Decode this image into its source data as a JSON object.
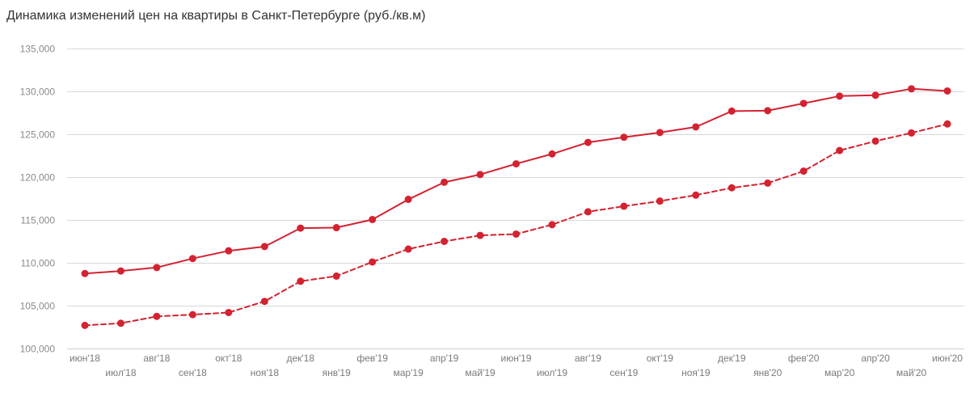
{
  "chart_data": {
    "type": "line",
    "title": "Динамика изменений цен на квартиры в Санкт-Петербурге (руб./кв.м)",
    "xlabel": "",
    "ylabel": "",
    "ylim": [
      100000,
      135000
    ],
    "yticks": [
      "100,000",
      "105,000",
      "110,000",
      "115,000",
      "120,000",
      "125,000",
      "130,000",
      "135,000"
    ],
    "ytick_values": [
      100000,
      105000,
      110000,
      115000,
      120000,
      125000,
      130000,
      135000
    ],
    "grid": true,
    "legend": "none",
    "categories": [
      "июн'18",
      "июл'18",
      "авг'18",
      "сен'18",
      "окт'18",
      "ноя'18",
      "дек'18",
      "янв'19",
      "фев'19",
      "мар'19",
      "апр'19",
      "май'19",
      "июн'19",
      "июл'19",
      "авг'19",
      "сен'19",
      "окт'19",
      "ноя'19",
      "дек'19",
      "янв'20",
      "фев'20",
      "мар'20",
      "апр'20",
      "май'20",
      "июн'20"
    ],
    "series": [
      {
        "style": "solid",
        "color": "#d32230",
        "values": [
          108750,
          109050,
          109450,
          110500,
          111400,
          111900,
          114050,
          114100,
          115050,
          117400,
          119400,
          120300,
          121550,
          122700,
          124050,
          124650,
          125200,
          125850,
          127700,
          127750,
          128600,
          129450,
          129550,
          130300,
          130050
        ]
      },
      {
        "style": "dashed",
        "color": "#d32230",
        "values": [
          102700,
          102950,
          103750,
          103950,
          104200,
          105500,
          107850,
          108450,
          110100,
          111600,
          112500,
          113200,
          113350,
          114450,
          115950,
          116600,
          117200,
          117900,
          118750,
          119300,
          120700,
          123100,
          124200,
          125150,
          126200
        ]
      }
    ]
  }
}
